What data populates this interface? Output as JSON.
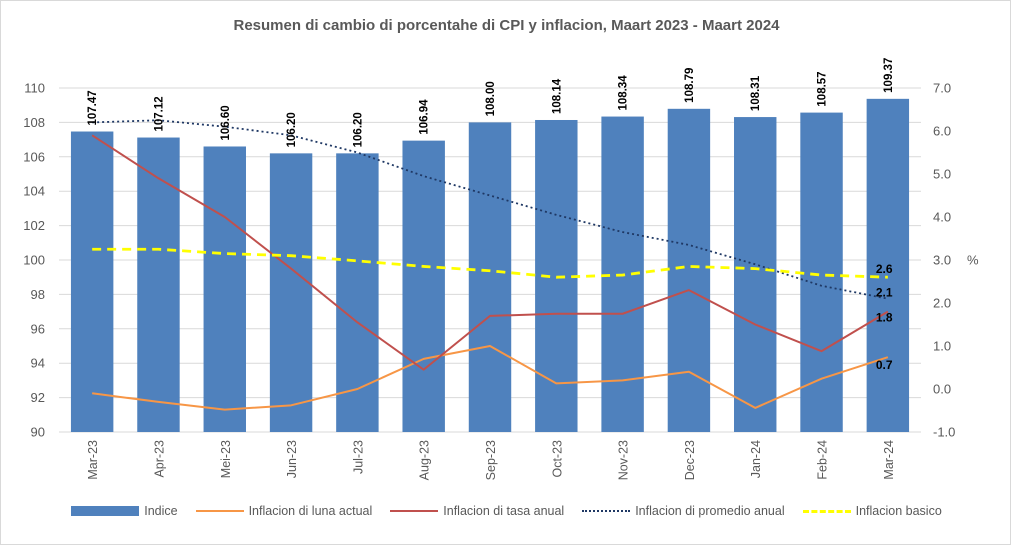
{
  "colors": {
    "bar": "#4f81bd",
    "monthly": "#f79646",
    "annual": "#c0504d",
    "average": "#1f3864",
    "core": "#ffff00",
    "grid": "#d9d9d9",
    "text": "#595959"
  },
  "chart_data": {
    "type": "bar",
    "title": "Resumen di cambio di porcentahe di CPI y inflacion, Maart 2023 - Maart 2024",
    "categories": [
      "Mar-23",
      "Apr-23",
      "Mei-23",
      "Jun-23",
      "Jul-23",
      "Aug-23",
      "Sep-23",
      "Oct-23",
      "Nov-23",
      "Dec-23",
      "Jan-24",
      "Feb-24",
      "Mar-24"
    ],
    "y_left": {
      "range": [
        90,
        110
      ],
      "ticks": [
        "90",
        "92",
        "94",
        "96",
        "98",
        "100",
        "102",
        "104",
        "106",
        "108",
        "110"
      ]
    },
    "y_right": {
      "label": "%",
      "range": [
        -1,
        7
      ],
      "ticks": [
        "-1.0",
        "0.0",
        "1.0",
        "2.0",
        "3.0",
        "4.0",
        "5.0",
        "6.0",
        "7.0"
      ]
    },
    "grid": true,
    "legend_position": "bottom",
    "series": [
      {
        "name": "Indice",
        "type": "bar",
        "axis": "left",
        "values": [
          107.47,
          107.12,
          106.6,
          106.2,
          106.2,
          106.94,
          108.0,
          108.14,
          108.34,
          108.79,
          108.31,
          108.57,
          109.37
        ],
        "labels": [
          "107.47",
          "107.12",
          "106.60",
          "106.20",
          "106.20",
          "106.94",
          "108.00",
          "108.14",
          "108.34",
          "108.79",
          "108.31",
          "108.57",
          "109.37"
        ]
      },
      {
        "name": "Inflacion di luna actual",
        "type": "line",
        "axis": "right",
        "values": [
          -0.1,
          -0.3,
          -0.48,
          -0.38,
          0.0,
          0.7,
          1.0,
          0.13,
          0.2,
          0.4,
          -0.44,
          0.24,
          0.74
        ],
        "end_label": "0.7"
      },
      {
        "name": "Inflacion di tasa anual",
        "type": "line",
        "axis": "right",
        "values": [
          5.9,
          4.9,
          4.0,
          2.8,
          1.55,
          0.45,
          1.7,
          1.75,
          1.75,
          2.3,
          1.5,
          0.88,
          1.8
        ],
        "end_label": "1.8"
      },
      {
        "name": "Inflacion di promedio anual",
        "type": "dotted",
        "axis": "right",
        "values": [
          6.2,
          6.25,
          6.1,
          5.9,
          5.5,
          4.95,
          4.5,
          4.05,
          3.65,
          3.35,
          2.9,
          2.4,
          2.1
        ],
        "end_label": "2.1"
      },
      {
        "name": "Inflacion basico",
        "type": "dashed",
        "axis": "right",
        "values": [
          3.25,
          3.25,
          3.15,
          3.1,
          2.98,
          2.85,
          2.75,
          2.6,
          2.65,
          2.85,
          2.8,
          2.65,
          2.6
        ],
        "end_label": "2.6"
      }
    ]
  }
}
